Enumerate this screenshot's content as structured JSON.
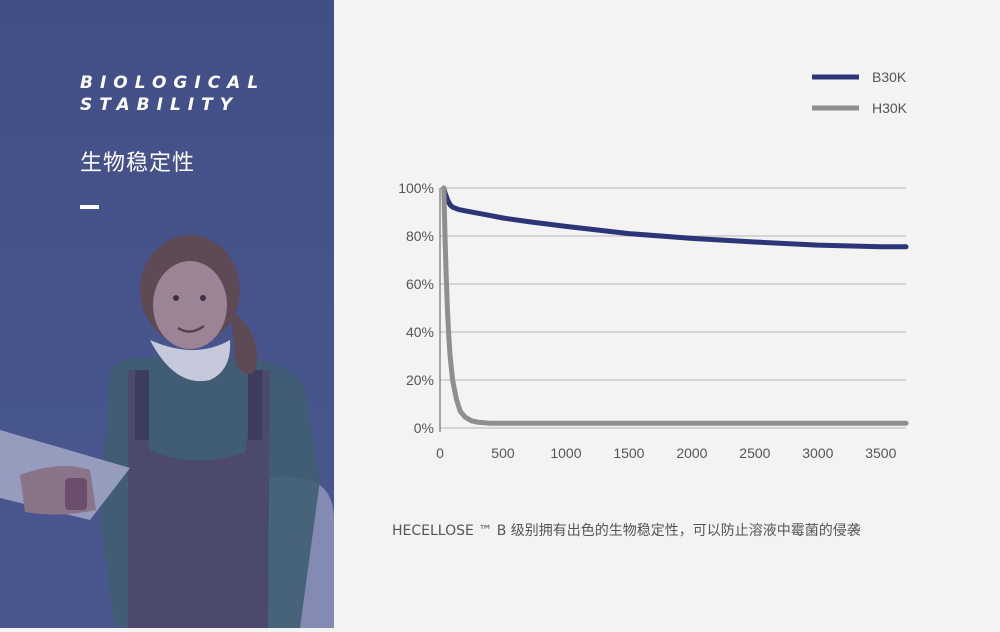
{
  "hero": {
    "eyebrow": "BIOLOGICAL\nSTABILITY",
    "title_cn": "生物稳定性",
    "caption": "HECELLOSE ™ B 级别拥有出色的生物稳定性，可以防止溶液中霉菌的侵袭"
  },
  "colors": {
    "panel": "#45528b",
    "b30k": "#2c3578",
    "h30k": "#8f8f8f",
    "grid": "#b5b5b5"
  },
  "chart_data": {
    "type": "line",
    "title": "",
    "xlabel": "",
    "ylabel": "",
    "xlim": [
      0,
      3700
    ],
    "ylim": [
      0,
      100
    ],
    "x_ticks": [
      0,
      500,
      1000,
      1500,
      2000,
      2500,
      3000,
      3500
    ],
    "y_ticks": [
      0,
      20,
      40,
      60,
      80,
      100
    ],
    "y_tick_labels": [
      "0%",
      "20%",
      "40%",
      "60%",
      "80%",
      "100%"
    ],
    "legend": "top-right",
    "grid": "horizontal",
    "series": [
      {
        "name": "B30K",
        "color": "#2c3578",
        "x": [
          30,
          40,
          60,
          80,
          100,
          150,
          200,
          300,
          400,
          500,
          700,
          1000,
          1500,
          2000,
          2500,
          3000,
          3500,
          3700
        ],
        "y": [
          100,
          98,
          95,
          93,
          92,
          91,
          90.5,
          89.5,
          88.5,
          87.5,
          86,
          84,
          81,
          79,
          77.5,
          76.2,
          75.5,
          75.5
        ]
      },
      {
        "name": "H30K",
        "color": "#8f8f8f",
        "x": [
          30,
          40,
          50,
          60,
          70,
          80,
          100,
          130,
          160,
          200,
          250,
          300,
          400,
          500,
          1000,
          2000,
          3000,
          3700
        ],
        "y": [
          100,
          80,
          62,
          48,
          38,
          30,
          20,
          12,
          7,
          4.5,
          3,
          2.4,
          2,
          2,
          2,
          2,
          2,
          2
        ]
      }
    ]
  }
}
